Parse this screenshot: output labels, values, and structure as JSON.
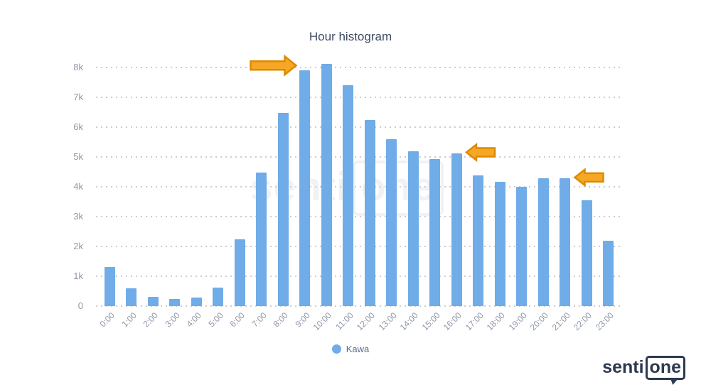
{
  "chart_data": {
    "type": "bar",
    "title": "Hour histogram",
    "categories": [
      "0:00",
      "1:00",
      "2:00",
      "3:00",
      "4:00",
      "5:00",
      "6:00",
      "7:00",
      "8:00",
      "9:00",
      "10:00",
      "11:00",
      "12:00",
      "13:00",
      "14:00",
      "15:00",
      "16:00",
      "17:00",
      "18:00",
      "19:00",
      "20:00",
      "21:00",
      "22:00",
      "23:00"
    ],
    "series": [
      {
        "name": "Kawa",
        "color": "#6FACE8",
        "values": [
          1300,
          600,
          300,
          230,
          280,
          620,
          2230,
          4470,
          6470,
          7900,
          8120,
          7400,
          6240,
          5600,
          5200,
          4930,
          5130,
          4380,
          4170,
          4010,
          4290,
          4290,
          3550,
          2190
        ]
      }
    ],
    "ylim": [
      0,
      8000
    ],
    "ytick_labels": [
      "0",
      "1k",
      "2k",
      "3k",
      "4k",
      "5k",
      "6k",
      "7k",
      "8k"
    ],
    "grid": "horizontal-dotted",
    "legend_position": "bottom",
    "annotations": [
      {
        "type": "arrow",
        "target": "9:00",
        "pointing": "right"
      },
      {
        "type": "arrow",
        "target": "16:00",
        "pointing": "left"
      },
      {
        "type": "arrow",
        "target": "21:00",
        "pointing": "left"
      }
    ]
  },
  "legend": {
    "label": "Kawa",
    "dot_color": "#6FACE8"
  },
  "watermark": {
    "senti": "senti",
    "one": "one"
  },
  "logo": {
    "senti": "senti",
    "one": "one"
  },
  "colors": {
    "bar": "#6FACE8",
    "title": "#3D4A63",
    "axis_label": "#8E97A8",
    "gridline": "#C9CDD4",
    "arrow_fill": "#F6A725",
    "arrow_stroke": "#DD8A00",
    "logo": "#2C3950"
  }
}
